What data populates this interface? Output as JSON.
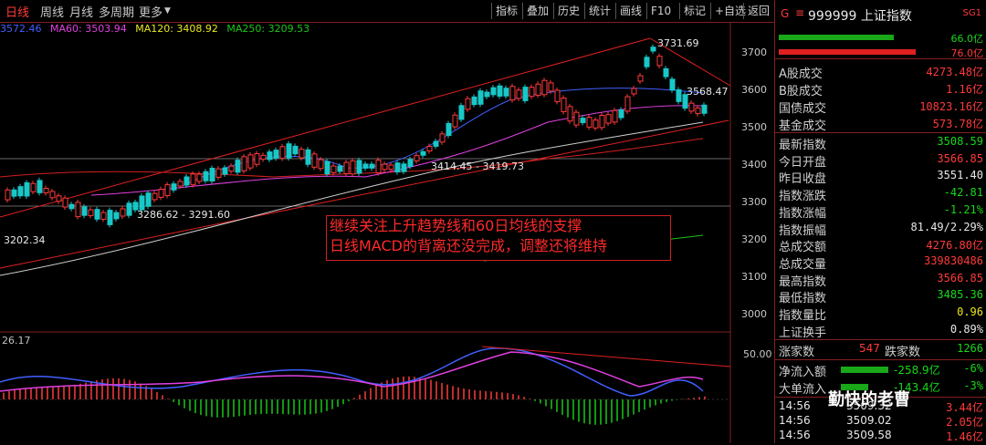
{
  "toolbar": {
    "tabs": [
      "日线",
      "周线",
      "月线",
      "多周期",
      "更多"
    ],
    "buttons": [
      "指标",
      "叠加",
      "历史",
      "统计",
      "画线",
      "F10",
      "标记",
      "+自选",
      "返回"
    ]
  },
  "ma_legend": {
    "prefix": "3572.46",
    "ma60": "MA60: 3503.94",
    "ma120": "MA120: 3408.92",
    "ma250": "MA250: 3209.53"
  },
  "annotations": {
    "high": "3731.69",
    "current": "3568.47",
    "pivot_left": "3286.62 - 3291.60",
    "pivot_mid": "3414.45 - 3419.73",
    "low": "3202.34",
    "macd_value": "26.17",
    "macd_axis": "50.00"
  },
  "callout": {
    "line1": "继续关注上升趋势线和60日均线的支撑",
    "line2": "日线MACD的背离还没完成，调整还将维持"
  },
  "yaxis": [
    "3700",
    "3600",
    "3500",
    "3400",
    "3300",
    "3200",
    "3100",
    "3000"
  ],
  "panel": {
    "code_icon": "G",
    "code": "999999 上证指数",
    "tag": "SG1",
    "bar_top_value": "66.0亿",
    "bar_bottom_value": "76.0亿",
    "rows": [
      {
        "label": "A股成交",
        "value": "4273.48亿",
        "color": "red"
      },
      {
        "label": "B股成交",
        "value": "1.16亿",
        "color": "red"
      },
      {
        "label": "国债成交",
        "value": "10823.16亿",
        "color": "red"
      },
      {
        "label": "基金成交",
        "value": "573.78亿",
        "color": "red"
      }
    ],
    "stats": [
      {
        "label": "最新指数",
        "value": "3508.59",
        "color": "green"
      },
      {
        "label": "今日开盘",
        "value": "3566.85",
        "color": "red"
      },
      {
        "label": "昨日收盘",
        "value": "3551.40",
        "color": "white"
      },
      {
        "label": "指数涨跌",
        "value": "-42.81",
        "color": "green"
      },
      {
        "label": "指数涨幅",
        "value": "-1.21%",
        "color": "green"
      },
      {
        "label": "指数振幅",
        "value": "81.49/2.29%",
        "color": "white"
      },
      {
        "label": "总成交额",
        "value": "4276.80亿",
        "color": "red"
      },
      {
        "label": "总成交量",
        "value": "339830486",
        "color": "red"
      },
      {
        "label": "最高指数",
        "value": "3566.85",
        "color": "red"
      },
      {
        "label": "最低指数",
        "value": "3485.36",
        "color": "green"
      },
      {
        "label": "指数量比",
        "value": "0.96",
        "color": "yellow"
      },
      {
        "label": "上证换手",
        "value": "0.89%",
        "color": "white"
      }
    ],
    "updown": {
      "up_label": "涨家数",
      "up_value": "547",
      "down_label": "跌家数",
      "down_value": "1266"
    },
    "flows": [
      {
        "label": "净流入额",
        "value": "-258.9亿",
        "pct": "-6%"
      },
      {
        "label": "大单流入",
        "value": "-143.4亿",
        "pct": "-3%"
      }
    ],
    "ticks": [
      {
        "time": "14:56",
        "price": "3509.32",
        "vol": "3.44亿"
      },
      {
        "time": "14:56",
        "price": "3509.02",
        "vol": "2.05亿"
      },
      {
        "time": "14:56",
        "price": "3509.58",
        "vol": "1.46亿"
      }
    ],
    "watermark": "勤快的老曹"
  }
}
